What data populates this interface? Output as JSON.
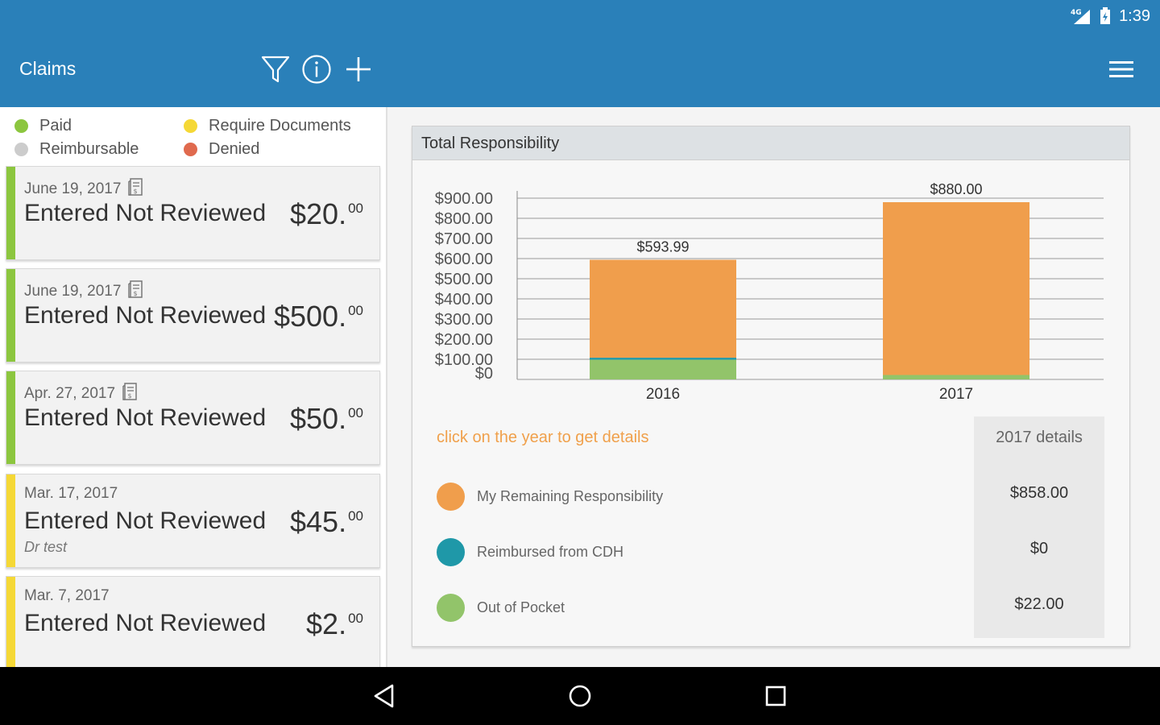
{
  "status_bar": {
    "network": "4G",
    "time": "1:39"
  },
  "app_bar": {
    "title": "Claims",
    "icons": [
      "filter-icon",
      "info-icon",
      "add-icon",
      "menu-icon"
    ]
  },
  "legend": [
    {
      "label": "Paid",
      "color": "#8cc63f"
    },
    {
      "label": "Reimbursable",
      "color": "#cccccc"
    },
    {
      "label": "Require Documents",
      "color": "#f5d836"
    },
    {
      "label": "Denied",
      "color": "#e06a4e"
    }
  ],
  "claims": [
    {
      "date": "June 19, 2017",
      "status": "Entered Not Reviewed",
      "amount_whole": "$20.",
      "amount_cents": "00",
      "note": "",
      "stripe_color": "#8cc63f",
      "has_receipt": true
    },
    {
      "date": "June 19, 2017",
      "status": "Entered Not Reviewed",
      "amount_whole": "$500.",
      "amount_cents": "00",
      "note": "",
      "stripe_color": "#8cc63f",
      "has_receipt": true
    },
    {
      "date": "Apr. 27, 2017",
      "status": "Entered Not Reviewed",
      "amount_whole": "$50.",
      "amount_cents": "00",
      "note": "",
      "stripe_color": "#8cc63f",
      "has_receipt": true
    },
    {
      "date": "Mar. 17, 2017",
      "status": "Entered Not Reviewed",
      "amount_whole": "$45.",
      "amount_cents": "00",
      "note": "Dr test",
      "stripe_color": "#f5d836",
      "has_receipt": false
    },
    {
      "date": "Mar. 7, 2017",
      "status": "Entered Not Reviewed",
      "amount_whole": "$2.",
      "amount_cents": "00",
      "note": "",
      "stripe_color": "#f5d836",
      "has_receipt": false
    }
  ],
  "responsibility": {
    "title": "Total Responsibility",
    "hint": "click on the year to get details",
    "details_header": "2017 details",
    "rows": [
      {
        "label": "My Remaining Responsibility",
        "color": "#f09e4c",
        "value": "$858.00"
      },
      {
        "label": "Reimbursed from CDH",
        "color": "#1f98a8",
        "value": "$0"
      },
      {
        "label": "Out of Pocket",
        "color": "#92c46a",
        "value": "$22.00"
      }
    ]
  },
  "chart_data": {
    "type": "bar",
    "stacked": true,
    "categories": [
      "2016",
      "2017"
    ],
    "series": [
      {
        "name": "Out of Pocket",
        "color": "#92c46a",
        "values": [
          97.74,
          22.0
        ]
      },
      {
        "name": "Reimbursed from CDH",
        "color": "#1f98a8",
        "values": [
          10,
          0
        ]
      },
      {
        "name": "My Remaining Responsibility",
        "color": "#f09e4c",
        "values": [
          486.25,
          858.0
        ]
      }
    ],
    "totals": [
      "$593.99",
      "$880.00"
    ],
    "y_ticks": [
      "$0",
      "$100.00",
      "$200.00",
      "$300.00",
      "$400.00",
      "$500.00",
      "$600.00",
      "$700.00",
      "$800.00",
      "$900.00"
    ],
    "ylim": [
      0,
      900
    ],
    "grid": true
  },
  "nav_bar": {
    "icons": [
      "back-icon",
      "home-icon",
      "recents-icon"
    ]
  }
}
